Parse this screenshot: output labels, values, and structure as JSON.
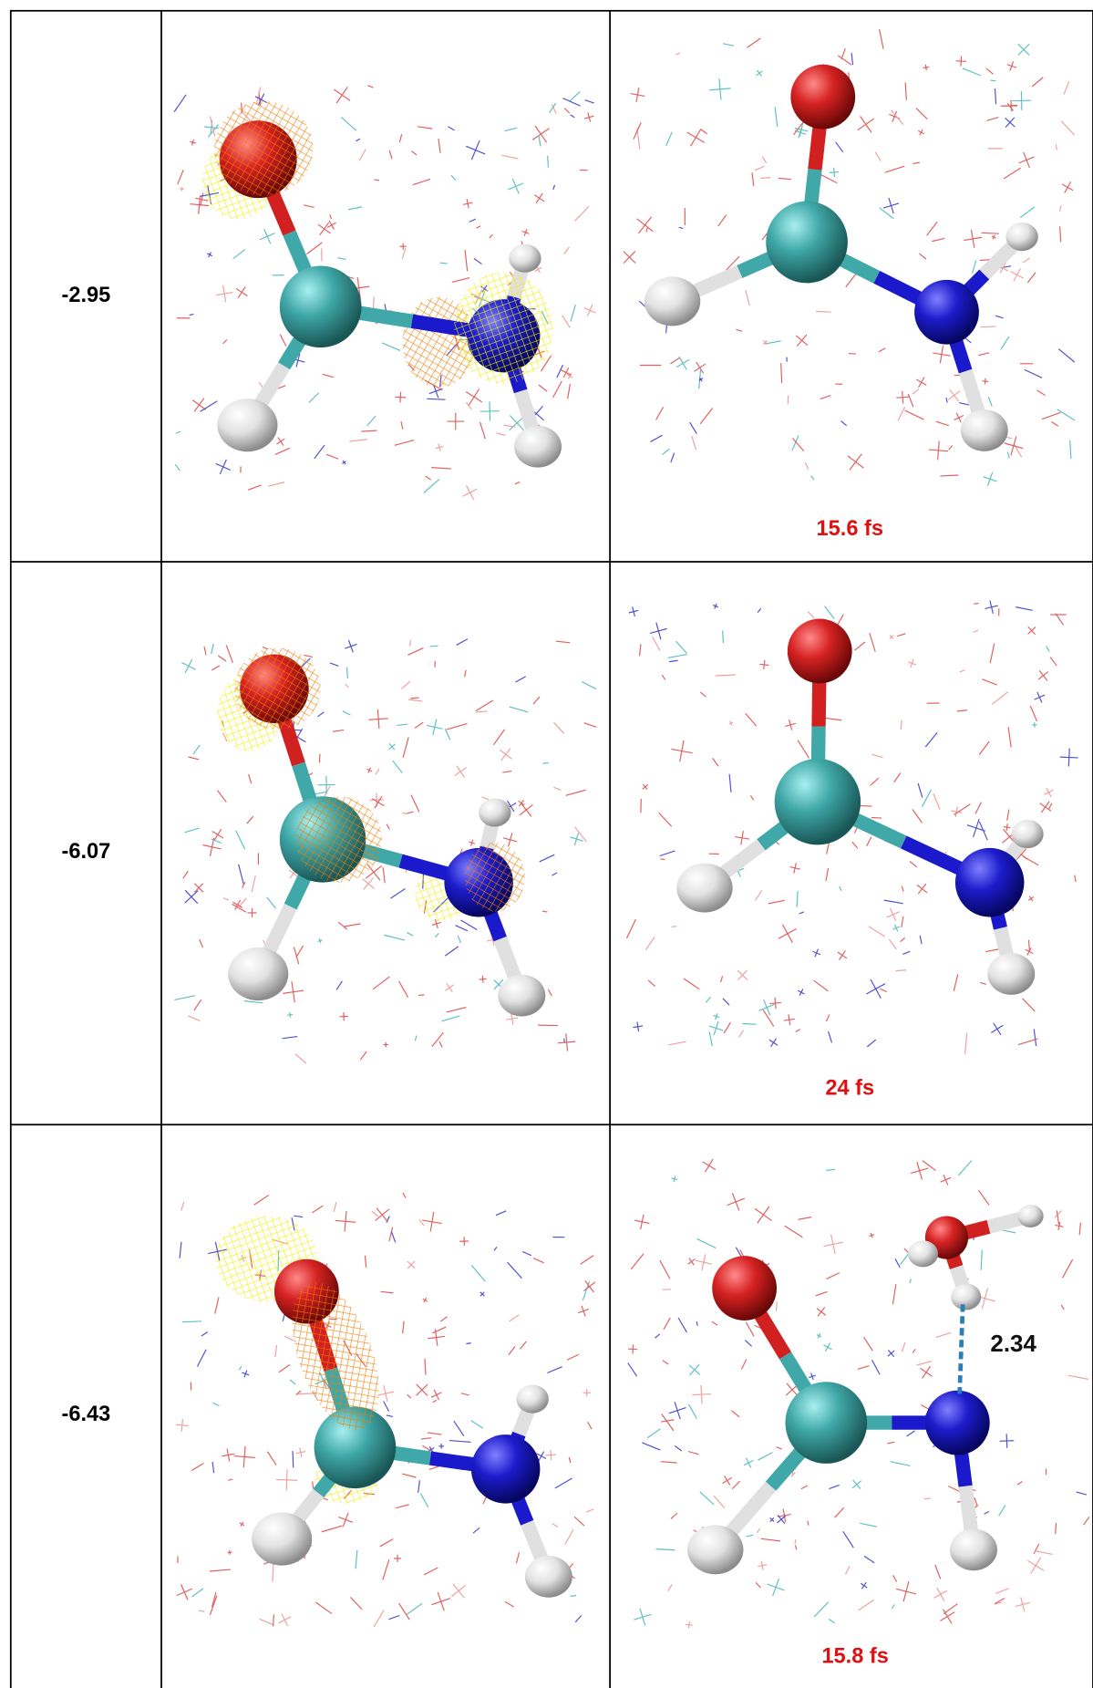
{
  "table": {
    "rows": [
      {
        "energy": "-2.95",
        "time": "15.6 fs"
      },
      {
        "energy": "-6.07",
        "time": "24 fs"
      },
      {
        "energy": "-6.43",
        "time": "15.8 fs",
        "distance": "2.34"
      }
    ]
  }
}
